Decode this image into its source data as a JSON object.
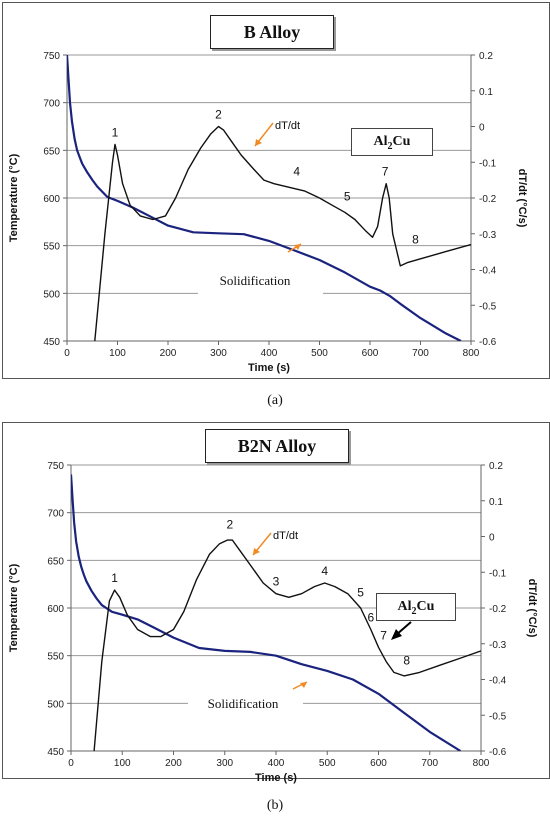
{
  "captions": [
    "(a)",
    "(b)"
  ],
  "chart_data": [
    {
      "type": "line",
      "title": "B Alloy",
      "xlabel": "Time (s)",
      "ylabel": "Temperature (°C)",
      "y2label": "dT/dt (°C/s)",
      "xlim": [
        0,
        800
      ],
      "ylim": [
        450,
        750
      ],
      "y2lim": [
        -0.6,
        0.2
      ],
      "xticks": [
        "0",
        "100",
        "200",
        "300",
        "400",
        "500",
        "600",
        "700",
        "800"
      ],
      "yticks": [
        "450",
        "500",
        "550",
        "600",
        "650",
        "700",
        "750"
      ],
      "y2ticks": [
        "-0.6",
        "-0.5",
        "-0.4",
        "-0.3",
        "-0.2",
        "-0.1",
        "0",
        "0.1",
        "0.2"
      ],
      "grid": "horizontal",
      "annotations": {
        "box": "Al2Cu",
        "curve_label": "dT/dt",
        "solid_label": "Solidification",
        "peaks": [
          {
            "label": "1",
            "x": 95,
            "y2": -0.05
          },
          {
            "label": "2",
            "x": 300,
            "y2": 0.0
          },
          {
            "label": "4",
            "x": 455,
            "y2": -0.16
          },
          {
            "label": "5",
            "x": 555,
            "y2": -0.23
          },
          {
            "label": "7",
            "x": 630,
            "y2": -0.16
          },
          {
            "label": "8",
            "x": 690,
            "y2": -0.35
          }
        ]
      },
      "series": [
        {
          "color": "#1a237e",
          "axis": "left",
          "x": [
            0,
            3,
            6,
            10,
            15,
            20,
            25,
            30,
            40,
            50,
            60,
            80,
            100,
            130,
            160,
            200,
            250,
            300,
            350,
            400,
            450,
            500,
            550,
            600,
            620,
            640,
            660,
            700,
            750,
            780
          ],
          "y": [
            750,
            725,
            700,
            680,
            662,
            650,
            643,
            636,
            627,
            619,
            612,
            601,
            597,
            590,
            582,
            571,
            564,
            563,
            562,
            555,
            545,
            535,
            522,
            507,
            503,
            497,
            489,
            474,
            458,
            450
          ]
        },
        {
          "color": "#111111",
          "axis": "right",
          "x": [
            55,
            75,
            90,
            95,
            100,
            110,
            125,
            145,
            170,
            195,
            215,
            240,
            265,
            285,
            300,
            310,
            325,
            345,
            370,
            390,
            410,
            440,
            470,
            500,
            525,
            550,
            570,
            590,
            605,
            615,
            625,
            632,
            638,
            645,
            660,
            675,
            700,
            750,
            800
          ],
          "y": [
            -0.6,
            -0.3,
            -0.1,
            -0.05,
            -0.08,
            -0.16,
            -0.22,
            -0.25,
            -0.26,
            -0.25,
            -0.2,
            -0.12,
            -0.06,
            -0.02,
            0.0,
            -0.01,
            -0.04,
            -0.08,
            -0.12,
            -0.15,
            -0.16,
            -0.17,
            -0.18,
            -0.2,
            -0.22,
            -0.24,
            -0.26,
            -0.29,
            -0.31,
            -0.28,
            -0.2,
            -0.16,
            -0.2,
            -0.3,
            -0.39,
            -0.38,
            -0.37,
            -0.35,
            -0.33
          ]
        }
      ]
    },
    {
      "type": "line",
      "title": "B2N Alloy",
      "xlabel": "Time (s)",
      "ylabel": "Temperature (°C)",
      "y2label": "dT/dt (°C/s)",
      "xlim": [
        0,
        800
      ],
      "ylim": [
        450,
        750
      ],
      "y2lim": [
        -0.6,
        0.2
      ],
      "xticks": [
        "0",
        "100",
        "200",
        "300",
        "400",
        "500",
        "600",
        "700",
        "800"
      ],
      "yticks": [
        "450",
        "500",
        "550",
        "600",
        "650",
        "700",
        "750"
      ],
      "y2ticks": [
        "-0.6",
        "-0.5",
        "-0.4",
        "-0.3",
        "-0.2",
        "-0.1",
        "0",
        "0.1",
        "0.2"
      ],
      "grid": "horizontal",
      "annotations": {
        "box": "Al2Cu",
        "curve_label": "dT/dt",
        "solid_label": "Solidification",
        "peaks": [
          {
            "label": "1",
            "x": 85,
            "y2": -0.15
          },
          {
            "label": "2",
            "x": 310,
            "y2": 0.0
          },
          {
            "label": "3",
            "x": 400,
            "y2": -0.16
          },
          {
            "label": "4",
            "x": 495,
            "y2": -0.13
          },
          {
            "label": "5",
            "x": 565,
            "y2": -0.19
          },
          {
            "label": "6",
            "x": 585,
            "y2": -0.26
          },
          {
            "label": "7",
            "x": 610,
            "y2": -0.31
          },
          {
            "label": "8",
            "x": 655,
            "y2": -0.38
          }
        ]
      },
      "series": [
        {
          "color": "#1a237e",
          "axis": "left",
          "x": [
            0,
            3,
            6,
            10,
            15,
            20,
            25,
            30,
            40,
            50,
            60,
            80,
            100,
            130,
            160,
            200,
            250,
            300,
            350,
            400,
            450,
            500,
            550,
            600,
            650,
            700,
            760
          ],
          "y": [
            740,
            715,
            690,
            670,
            654,
            643,
            635,
            628,
            618,
            610,
            603,
            596,
            593,
            588,
            580,
            569,
            558,
            555,
            554,
            550,
            541,
            534,
            525,
            510,
            490,
            470,
            450
          ]
        },
        {
          "color": "#111111",
          "axis": "right",
          "x": [
            45,
            60,
            75,
            85,
            95,
            110,
            130,
            155,
            175,
            200,
            220,
            245,
            270,
            290,
            305,
            315,
            330,
            350,
            375,
            400,
            425,
            450,
            475,
            495,
            515,
            540,
            565,
            585,
            600,
            615,
            630,
            650,
            680,
            720,
            760,
            800
          ],
          "y": [
            -0.6,
            -0.35,
            -0.18,
            -0.15,
            -0.17,
            -0.22,
            -0.26,
            -0.28,
            -0.28,
            -0.26,
            -0.21,
            -0.12,
            -0.05,
            -0.02,
            -0.01,
            -0.01,
            -0.04,
            -0.08,
            -0.13,
            -0.16,
            -0.17,
            -0.16,
            -0.14,
            -0.13,
            -0.14,
            -0.16,
            -0.2,
            -0.26,
            -0.31,
            -0.35,
            -0.38,
            -0.39,
            -0.38,
            -0.36,
            -0.34,
            -0.32
          ]
        }
      ]
    }
  ]
}
